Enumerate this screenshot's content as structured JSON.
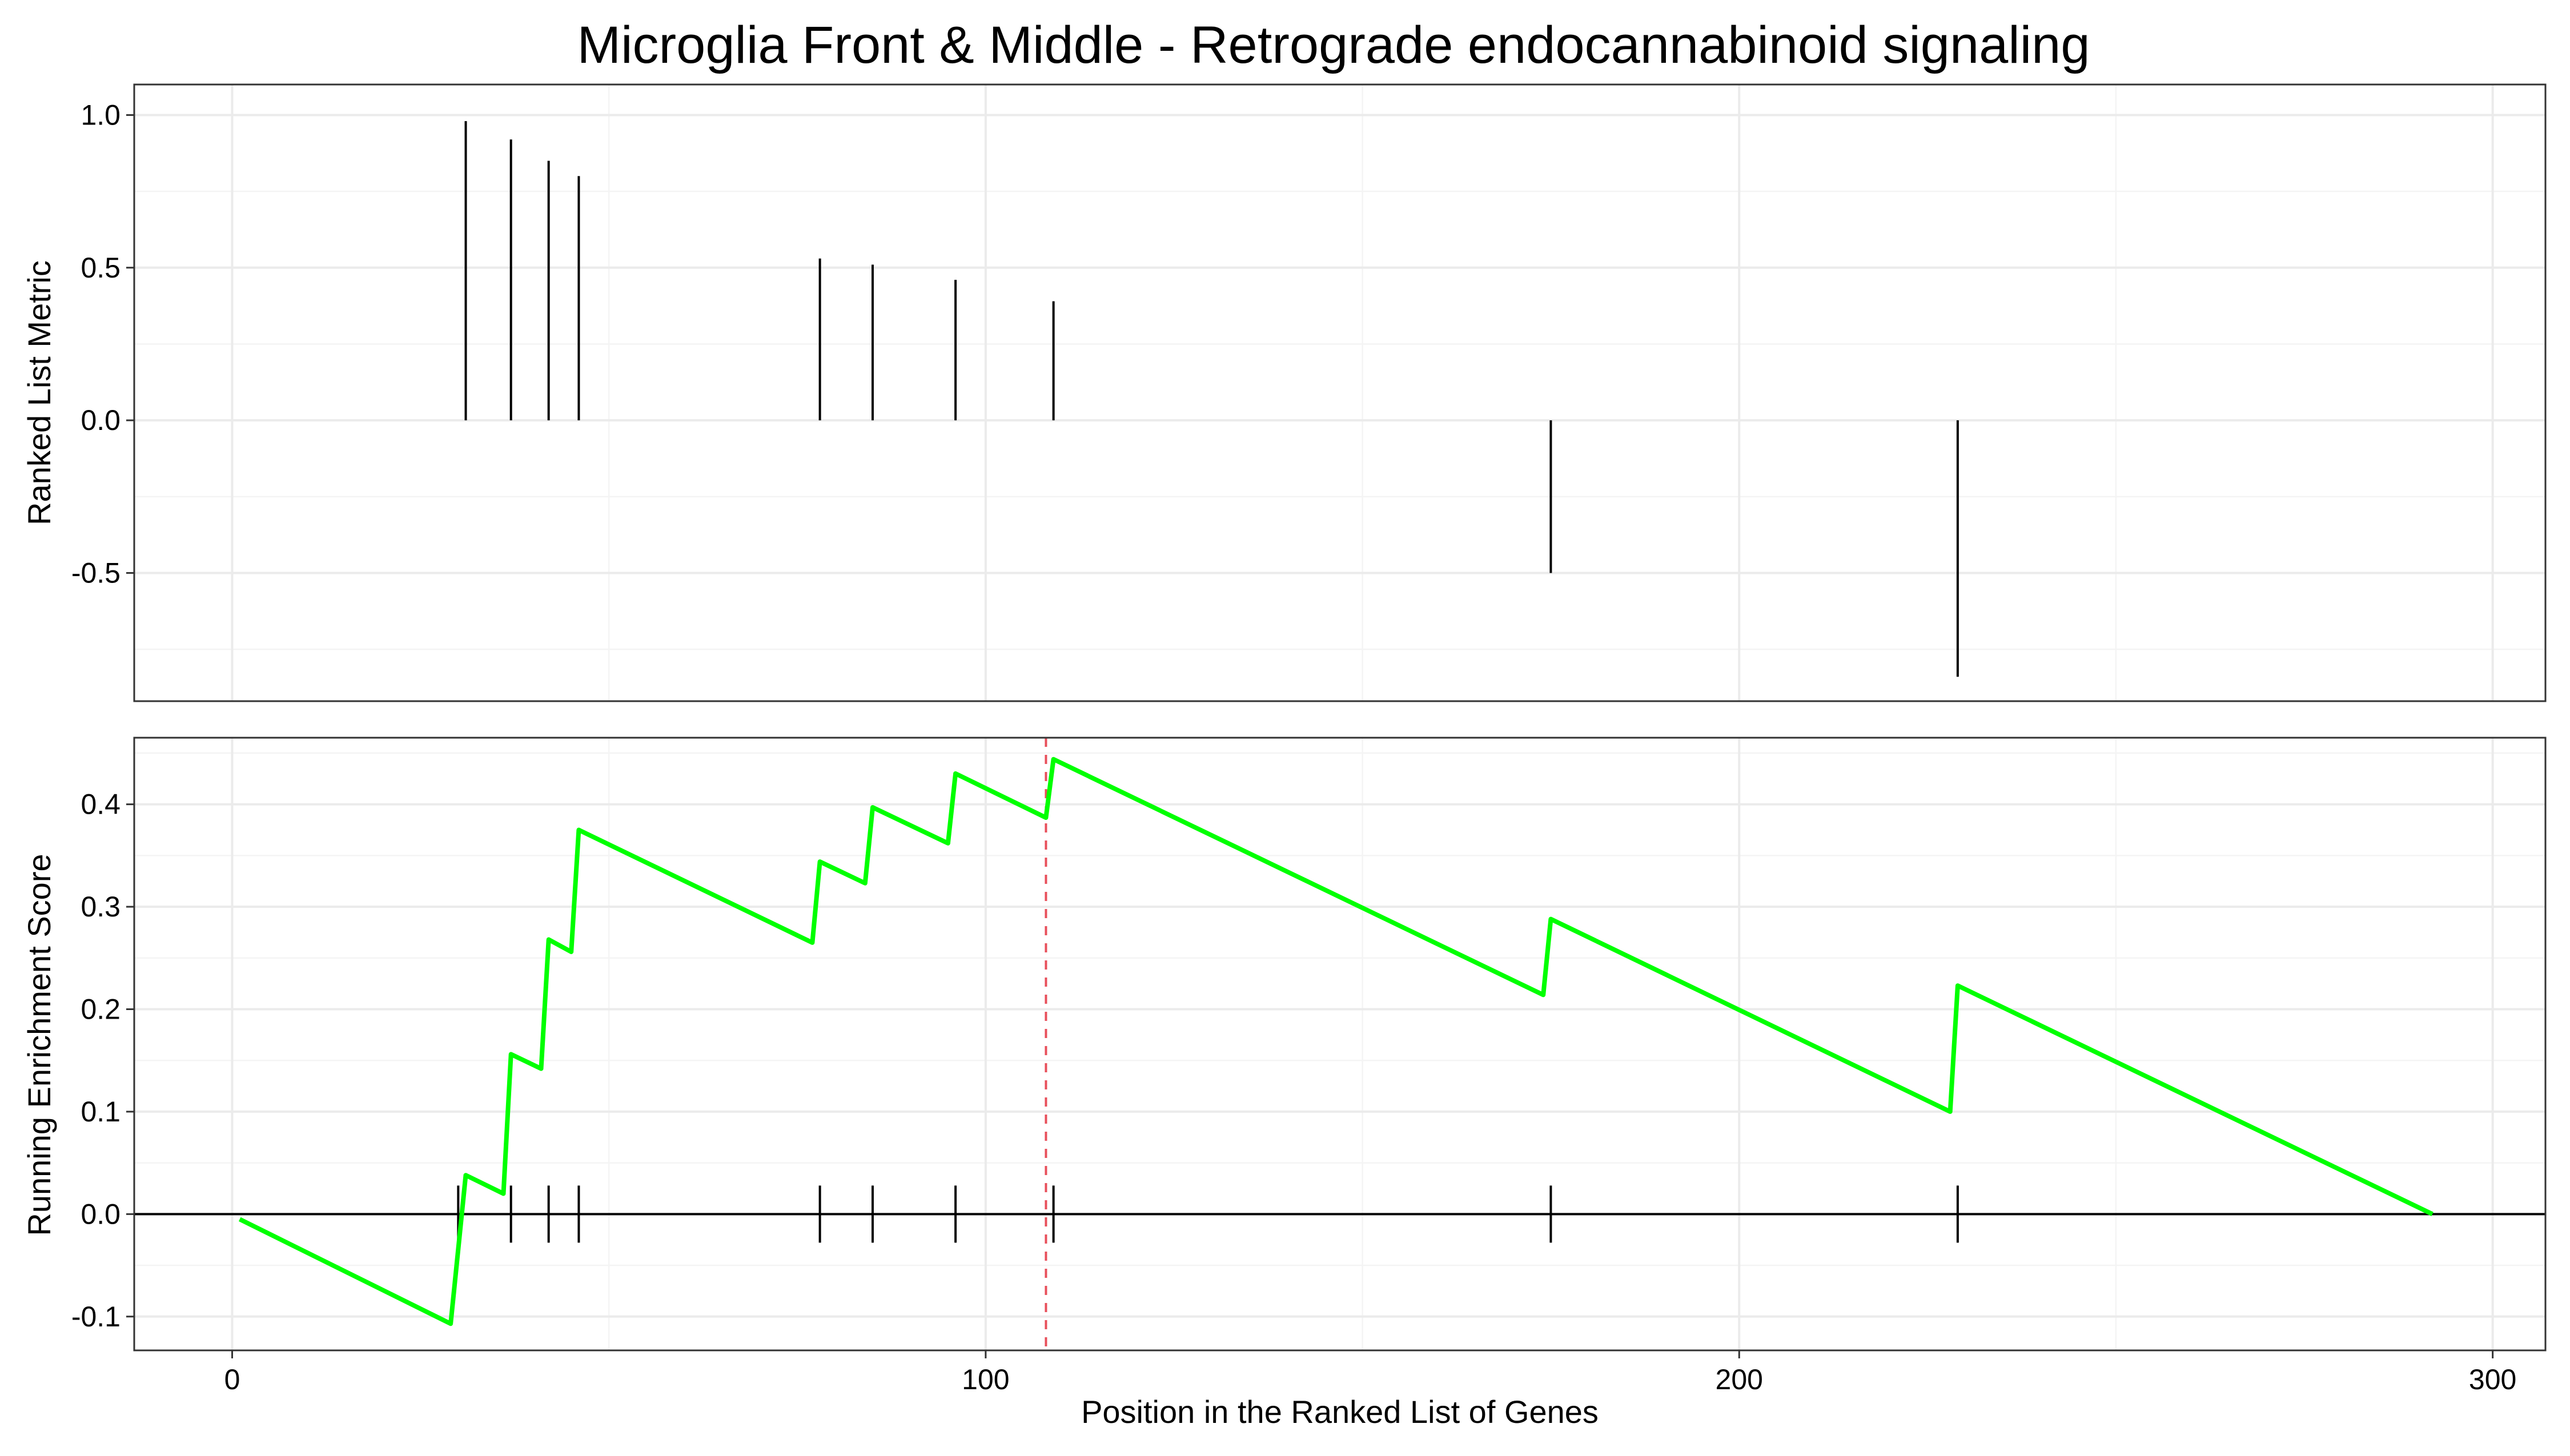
{
  "chart_data": [
    {
      "panel": "top",
      "type": "bar",
      "title": "Microglia Front & Middle - Retrograde endocannabinoid signaling",
      "ylabel": "Ranked List Metric",
      "xlabel": "",
      "xlim": [
        -13,
        307
      ],
      "ylim": [
        -0.92,
        1.1
      ],
      "yticks": [
        1.0,
        0.5,
        0.0,
        -0.5
      ],
      "ytick_labels": [
        "1.0",
        "0.5",
        "0.0",
        "-0.5"
      ],
      "xticks": [
        0,
        100,
        200,
        300
      ],
      "grid": true,
      "bars": [
        {
          "x": 31,
          "y": 0.98
        },
        {
          "x": 37,
          "y": 0.92
        },
        {
          "x": 42,
          "y": 0.85
        },
        {
          "x": 46,
          "y": 0.8
        },
        {
          "x": 78,
          "y": 0.53
        },
        {
          "x": 85,
          "y": 0.51
        },
        {
          "x": 96,
          "y": 0.46
        },
        {
          "x": 109,
          "y": 0.39
        },
        {
          "x": 175,
          "y": -0.5
        },
        {
          "x": 229,
          "y": -0.84
        }
      ]
    },
    {
      "panel": "bottom",
      "type": "line",
      "xlabel": "Position in the Ranked List of Genes",
      "ylabel": "Running Enrichment Score",
      "xlim": [
        -13,
        307
      ],
      "ylim": [
        -0.133,
        0.465
      ],
      "yticks": [
        0.4,
        0.3,
        0.2,
        0.1,
        0.0,
        -0.1
      ],
      "ytick_labels": [
        "0.4",
        "0.3",
        "0.2",
        "0.1",
        "0.0",
        "-0.1"
      ],
      "xticks": [
        0,
        100,
        200,
        300
      ],
      "xtick_labels": [
        "0",
        "100",
        "200",
        "300"
      ],
      "grid": true,
      "line_color": "#00ff00",
      "peak_line_color": "#e8505b",
      "peak_x": 108,
      "hits": [
        30,
        37,
        42,
        46,
        78,
        85,
        96,
        109,
        175,
        229
      ],
      "series": [
        {
          "points": [
            [
              1,
              -0.005
            ],
            [
              29,
              -0.107
            ],
            [
              31,
              0.038
            ],
            [
              36,
              0.02
            ],
            [
              37,
              0.156
            ],
            [
              41,
              0.142
            ],
            [
              42,
              0.268
            ],
            [
              45,
              0.256
            ],
            [
              46,
              0.375
            ],
            [
              77,
              0.265
            ],
            [
              78,
              0.344
            ],
            [
              84,
              0.323
            ],
            [
              85,
              0.397
            ],
            [
              95,
              0.362
            ],
            [
              96,
              0.43
            ],
            [
              108,
              0.387
            ],
            [
              109,
              0.444
            ],
            [
              174,
              0.214
            ],
            [
              175,
              0.288
            ],
            [
              228,
              0.1
            ],
            [
              229,
              0.223
            ],
            [
              292,
              0.0
            ]
          ]
        }
      ]
    }
  ]
}
